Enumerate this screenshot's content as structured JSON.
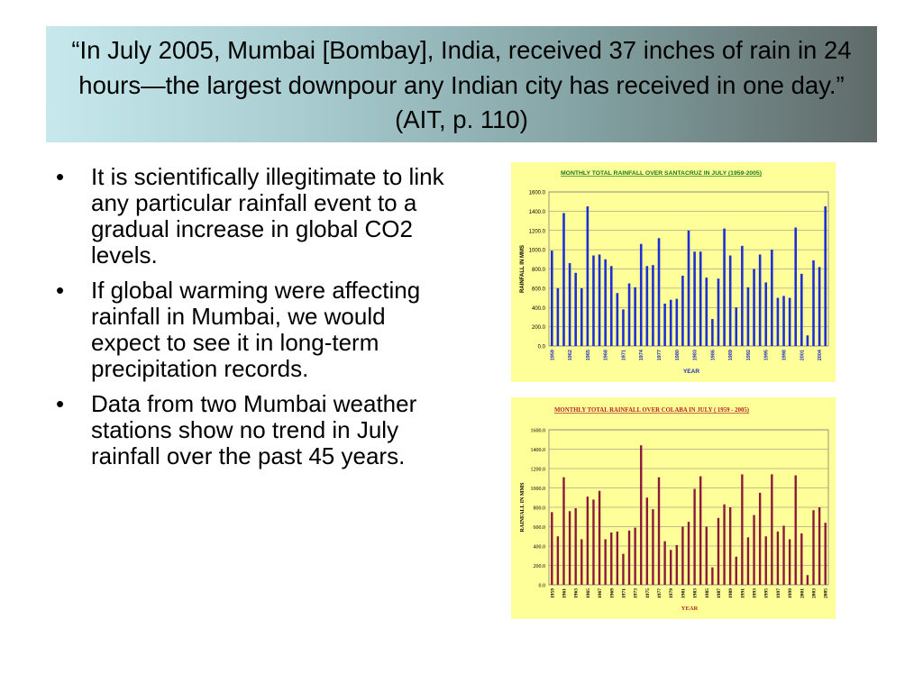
{
  "title": "“In July 2005, Mumbai [Bombay], India, received 37 inches of rain in 24 hours—the largest downpour any Indian city has received in one day.” (AIT, p. 110)",
  "bullets": [
    "It is scientifically illegitimate to link any particular rainfall event to a gradual increase in global CO2 levels.",
    "If global warming were affecting rainfall in Mumbai, we would expect to see it in long-term precipitation records.",
    "Data from two Mumbai weather stations show no trend in July rainfall over the past 45 years."
  ],
  "colors": {
    "chart_background": "#ffff99",
    "santacruz_bars": "#1f2fd6",
    "colaba_bars": "#8b1a3a",
    "santacruz_title": "#1a7a1a",
    "colaba_title": "#b3261e"
  },
  "chart_data": [
    {
      "type": "bar",
      "title": "MONTHLY TOTAL RAINFALL OVER SANTACRUZ IN JULY (1959-2005)",
      "xlabel": "YEAR",
      "ylabel": "RAINFALL IN MMS",
      "ylim": [
        0,
        1600
      ],
      "yticks": [
        "0.0",
        "200.0",
        "400.0",
        "600.0",
        "800.0",
        "1000.0",
        "1200.0",
        "1400.0",
        "1600.0"
      ],
      "grid": true,
      "x_tick_labels": [
        "1959",
        "1962",
        "1965",
        "1968",
        "1971",
        "1974",
        "1977",
        "1980",
        "1983",
        "1986",
        "1989",
        "1992",
        "1995",
        "1998",
        "2001",
        "2004"
      ],
      "x_tick_step": 3,
      "categories": [
        "1959",
        "1960",
        "1961",
        "1962",
        "1963",
        "1964",
        "1965",
        "1966",
        "1967",
        "1968",
        "1969",
        "1970",
        "1971",
        "1972",
        "1973",
        "1974",
        "1975",
        "1976",
        "1977",
        "1978",
        "1979",
        "1980",
        "1981",
        "1982",
        "1983",
        "1984",
        "1985",
        "1986",
        "1987",
        "1988",
        "1989",
        "1990",
        "1991",
        "1992",
        "1993",
        "1994",
        "1995",
        "1996",
        "1997",
        "1998",
        "1999",
        "2000",
        "2001",
        "2002",
        "2003",
        "2004",
        "2005"
      ],
      "values": [
        990,
        600,
        1380,
        860,
        760,
        600,
        1450,
        940,
        950,
        900,
        830,
        550,
        380,
        650,
        610,
        1060,
        830,
        840,
        1120,
        440,
        480,
        490,
        730,
        1200,
        980,
        980,
        710,
        280,
        700,
        1220,
        940,
        400,
        1040,
        610,
        800,
        950,
        660,
        1000,
        500,
        520,
        500,
        1230,
        750,
        110,
        890,
        820,
        1450
      ]
    },
    {
      "type": "bar",
      "title": "MONTHLY TOTAL RAINFALL OVER COLABA IN JULY  ( 1959 - 2005)",
      "xlabel": "YEAR",
      "ylabel": "RAINFALL IN MMS",
      "ylim": [
        0,
        1600
      ],
      "yticks": [
        "0.0",
        "200.0",
        "400.0",
        "600.0",
        "800.0",
        "1000.0",
        "1200.0",
        "1400.0",
        "1600.0"
      ],
      "grid": true,
      "x_tick_labels": [
        "1959",
        "1961",
        "1963",
        "1965",
        "1967",
        "1969",
        "1971",
        "1973",
        "1975",
        "1977",
        "1979",
        "1981",
        "1983",
        "1985",
        "1987",
        "1989",
        "1991",
        "1993",
        "1995",
        "1997",
        "1999",
        "2001",
        "2003",
        "2005"
      ],
      "x_tick_step": 2,
      "categories": [
        "1959",
        "1960",
        "1961",
        "1962",
        "1963",
        "1964",
        "1965",
        "1966",
        "1967",
        "1968",
        "1969",
        "1970",
        "1971",
        "1972",
        "1973",
        "1974",
        "1975",
        "1976",
        "1977",
        "1978",
        "1979",
        "1980",
        "1981",
        "1982",
        "1983",
        "1984",
        "1985",
        "1986",
        "1987",
        "1988",
        "1989",
        "1990",
        "1991",
        "1992",
        "1993",
        "1994",
        "1995",
        "1996",
        "1997",
        "1998",
        "1999",
        "2000",
        "2001",
        "2002",
        "2003",
        "2004",
        "2005"
      ],
      "values": [
        750,
        500,
        1110,
        760,
        790,
        470,
        910,
        880,
        970,
        470,
        540,
        550,
        320,
        560,
        590,
        1440,
        900,
        780,
        1110,
        450,
        360,
        410,
        600,
        650,
        990,
        1120,
        600,
        180,
        690,
        830,
        800,
        290,
        1140,
        490,
        720,
        950,
        500,
        1140,
        550,
        610,
        470,
        1130,
        530,
        100,
        770,
        800,
        640
      ]
    }
  ]
}
